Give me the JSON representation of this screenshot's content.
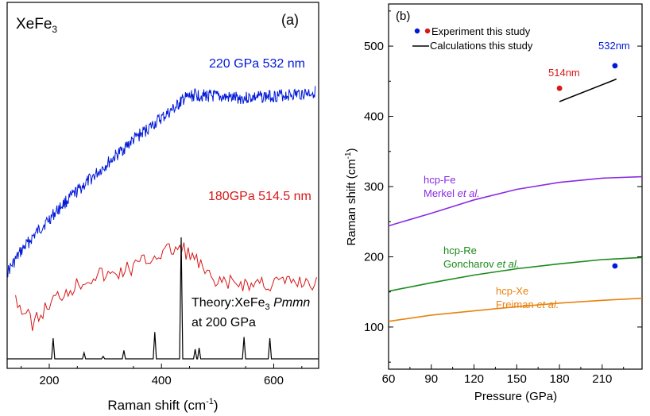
{
  "chart_data": [
    {
      "type": "line",
      "panel_label": "(a)",
      "sample_label": {
        "base": "XeFe",
        "sub": "3"
      },
      "xlabel": "Raman shift (cm",
      "xlabel_sup": "-1",
      "xlabel_close": ")",
      "xlim": [
        125,
        680
      ],
      "x_ticks": [
        200,
        400,
        600
      ],
      "x_tick_labels": [
        "200",
        "400",
        "600"
      ],
      "series": [
        {
          "name": "220 GPa 532 nm",
          "color": "#0018d8",
          "x": [
            125,
            150,
            175,
            200,
            225,
            250,
            275,
            300,
            325,
            350,
            375,
            400,
            425,
            440,
            460,
            480,
            500,
            525,
            550,
            575,
            600,
            625,
            650,
            675
          ],
          "y": [
            0.08,
            0.18,
            0.26,
            0.33,
            0.4,
            0.46,
            0.52,
            0.58,
            0.64,
            0.7,
            0.75,
            0.8,
            0.85,
            0.89,
            0.91,
            0.905,
            0.9,
            0.895,
            0.895,
            0.9,
            0.905,
            0.91,
            0.915,
            0.925
          ]
        },
        {
          "name": "180GPa 514.5 nm",
          "color": "#d81818",
          "x": [
            140,
            155,
            170,
            185,
            200,
            215,
            230,
            245,
            260,
            275,
            290,
            305,
            320,
            335,
            350,
            365,
            380,
            395,
            410,
            425,
            440,
            455,
            470,
            485,
            500,
            515,
            530,
            545,
            560,
            575,
            590,
            605,
            620,
            635,
            650,
            665,
            680
          ],
          "y": [
            0.12,
            -0.03,
            -0.12,
            -0.05,
            0.05,
            0.12,
            0.18,
            0.22,
            0.27,
            0.31,
            0.33,
            0.31,
            0.34,
            0.37,
            0.4,
            0.44,
            0.48,
            0.52,
            0.55,
            0.57,
            0.56,
            0.5,
            0.4,
            0.3,
            0.22,
            0.26,
            0.24,
            0.25,
            0.22,
            0.27,
            0.23,
            0.26,
            0.25,
            0.26,
            0.27,
            0.25,
            0.26
          ]
        },
        {
          "name": "Theory:XeFe3 Pmmn at 200 GPa",
          "color": "#000000",
          "peaks": [
            {
              "x": 207,
              "h": 0.17
            },
            {
              "x": 262,
              "h": 0.05
            },
            {
              "x": 296,
              "h": 0.02
            },
            {
              "x": 333,
              "h": 0.07
            },
            {
              "x": 388,
              "h": 0.22
            },
            {
              "x": 435,
              "h": 1.0
            },
            {
              "x": 460,
              "h": 0.08
            },
            {
              "x": 467,
              "h": 0.09
            },
            {
              "x": 547,
              "h": 0.18
            },
            {
              "x": 593,
              "h": 0.17
            }
          ]
        }
      ],
      "annotations": {
        "blue_label": "220 GPa 532 nm",
        "red_label": "180GPa 514.5 nm",
        "theory_prefix": "Theory:XeFe",
        "theory_sub": "3",
        "theory_space": "Pmmn",
        "theory_pressure": "at 200 GPa"
      }
    },
    {
      "type": "scatter",
      "panel_label": "(b)",
      "xlabel": "Pressure (GPa)",
      "ylabel": "Raman shift (cm",
      "ylabel_sup": "-1",
      "ylabel_close": ")",
      "xlim": [
        60,
        238
      ],
      "ylim": [
        40,
        560
      ],
      "x_ticks": [
        60,
        90,
        120,
        150,
        180,
        210
      ],
      "x_tick_labels": [
        "60",
        "90",
        "120",
        "150",
        "180",
        "210"
      ],
      "y_ticks": [
        100,
        200,
        300,
        400,
        500
      ],
      "y_tick_labels": [
        "100",
        "200",
        "300",
        "400",
        "500"
      ],
      "legend": {
        "position": "top-left",
        "experiment_label": "Experiment this study",
        "calculation_label": "Calculations this study"
      },
      "points": [
        {
          "x": 219,
          "y": 472,
          "color": "#0018d8",
          "label": "532nm"
        },
        {
          "x": 180,
          "y": 440,
          "color": "#d81818",
          "label": "514nm"
        },
        {
          "x": 219,
          "y": 187,
          "color": "#0018d8",
          "label": ""
        }
      ],
      "calculation_line": {
        "x": [
          180,
          220
        ],
        "y": [
          421,
          453
        ],
        "color": "#000000"
      },
      "reference_curves": [
        {
          "name": "hcp-Fe",
          "author": "Merkel",
          "suffix": "et al.",
          "color": "#8a2be2",
          "x": [
            60,
            90,
            120,
            150,
            180,
            210,
            238
          ],
          "y": [
            244,
            262,
            281,
            296,
            306,
            312,
            314
          ]
        },
        {
          "name": "hcp-Re",
          "author": "Goncharov",
          "suffix": "et al.",
          "color": "#1a8a1a",
          "x": [
            60,
            90,
            120,
            150,
            180,
            210,
            238
          ],
          "y": [
            151,
            163,
            174,
            183,
            190,
            196,
            199
          ]
        },
        {
          "name": "hcp-Xe",
          "author": "Freiman",
          "suffix": "et al.",
          "color": "#e8820e",
          "x": [
            60,
            90,
            120,
            150,
            180,
            210,
            238
          ],
          "y": [
            108,
            117,
            123,
            129,
            134,
            138,
            141
          ]
        }
      ]
    }
  ]
}
